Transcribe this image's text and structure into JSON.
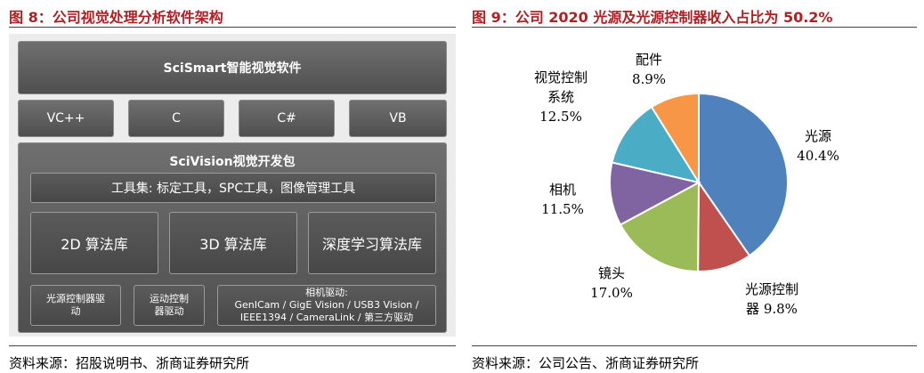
{
  "left": {
    "title": "图 8：公司视觉处理分析软件架构",
    "source": "资料来源：招股说明书、浙商证券研究所",
    "top_block": "SciSmart智能视觉软件",
    "languages": [
      "VC++",
      "C",
      "C#",
      "VB"
    ],
    "sdk": {
      "title": "SciVision视觉开发包",
      "toolset": "工具集: 标定工具，SPC工具，图像管理工具",
      "algorithms": [
        "2D 算法库",
        "3D 算法库",
        "深度学习算法库"
      ],
      "drivers": {
        "light": [
          "光源控制器驱",
          "动"
        ],
        "motion": [
          "运动控制",
          "器驱动"
        ],
        "camera": [
          "相机驱动:",
          "GenICam / GigE Vision / USB3 Vision /",
          "IEEE1394 / CameraLink / 第三方驱动"
        ]
      }
    }
  },
  "right": {
    "title": "图 9：公司 2020 光源及光源控制器收入占比为 50.2%",
    "source": "资料来源：公司公告、浙商证券研究所"
  },
  "chart_data": {
    "type": "pie",
    "title": "图 9：公司 2020 光源及光源控制器收入占比为 50.2%",
    "slices": [
      {
        "name": "光源",
        "value": 40.4,
        "color": "#4f81bd",
        "label_lines": [
          "光源",
          "40.4%"
        ]
      },
      {
        "name": "光源控制器",
        "value": 9.8,
        "color": "#c0504d",
        "label_lines": [
          "光源控制",
          "器 9.8%"
        ]
      },
      {
        "name": "镜头",
        "value": 17.0,
        "color": "#9bbb59",
        "label_lines": [
          "镜头",
          "17.0%"
        ]
      },
      {
        "name": "相机",
        "value": 11.5,
        "color": "#8064a2",
        "label_lines": [
          "相机",
          "11.5%"
        ]
      },
      {
        "name": "视觉控制系统",
        "value": 12.5,
        "color": "#4bacc6",
        "label_lines": [
          "视觉控制",
          "系统",
          "12.5%"
        ]
      },
      {
        "name": "配件",
        "value": 8.9,
        "color": "#f79646",
        "label_lines": [
          "配件",
          "8.9%"
        ]
      }
    ]
  }
}
